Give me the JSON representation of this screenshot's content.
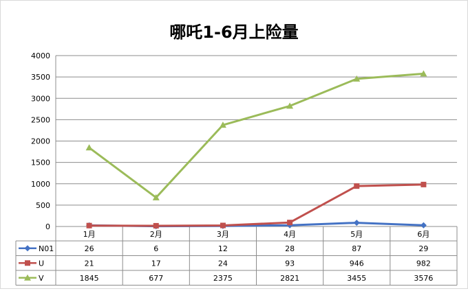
{
  "chart_data": {
    "type": "line",
    "title": "哪吒1-6月上险量",
    "categories": [
      "1月",
      "2月",
      "3月",
      "4月",
      "5月",
      "6月"
    ],
    "ylim": [
      0,
      4000
    ],
    "yticks": [
      "0",
      "500",
      "1000",
      "1500",
      "2000",
      "2500",
      "3000",
      "3500",
      "4000"
    ],
    "grid": true,
    "data_table": true,
    "series": [
      {
        "name": "N01",
        "values": [
          26,
          6,
          12,
          28,
          87,
          29
        ],
        "color": "#4472C4",
        "marker": "diamond"
      },
      {
        "name": "U",
        "values": [
          21,
          17,
          24,
          93,
          946,
          982
        ],
        "color": "#C0504D",
        "marker": "square"
      },
      {
        "name": "V",
        "values": [
          1845,
          677,
          2375,
          2821,
          3455,
          3576
        ],
        "color": "#9BBB59",
        "marker": "triangle"
      }
    ]
  }
}
